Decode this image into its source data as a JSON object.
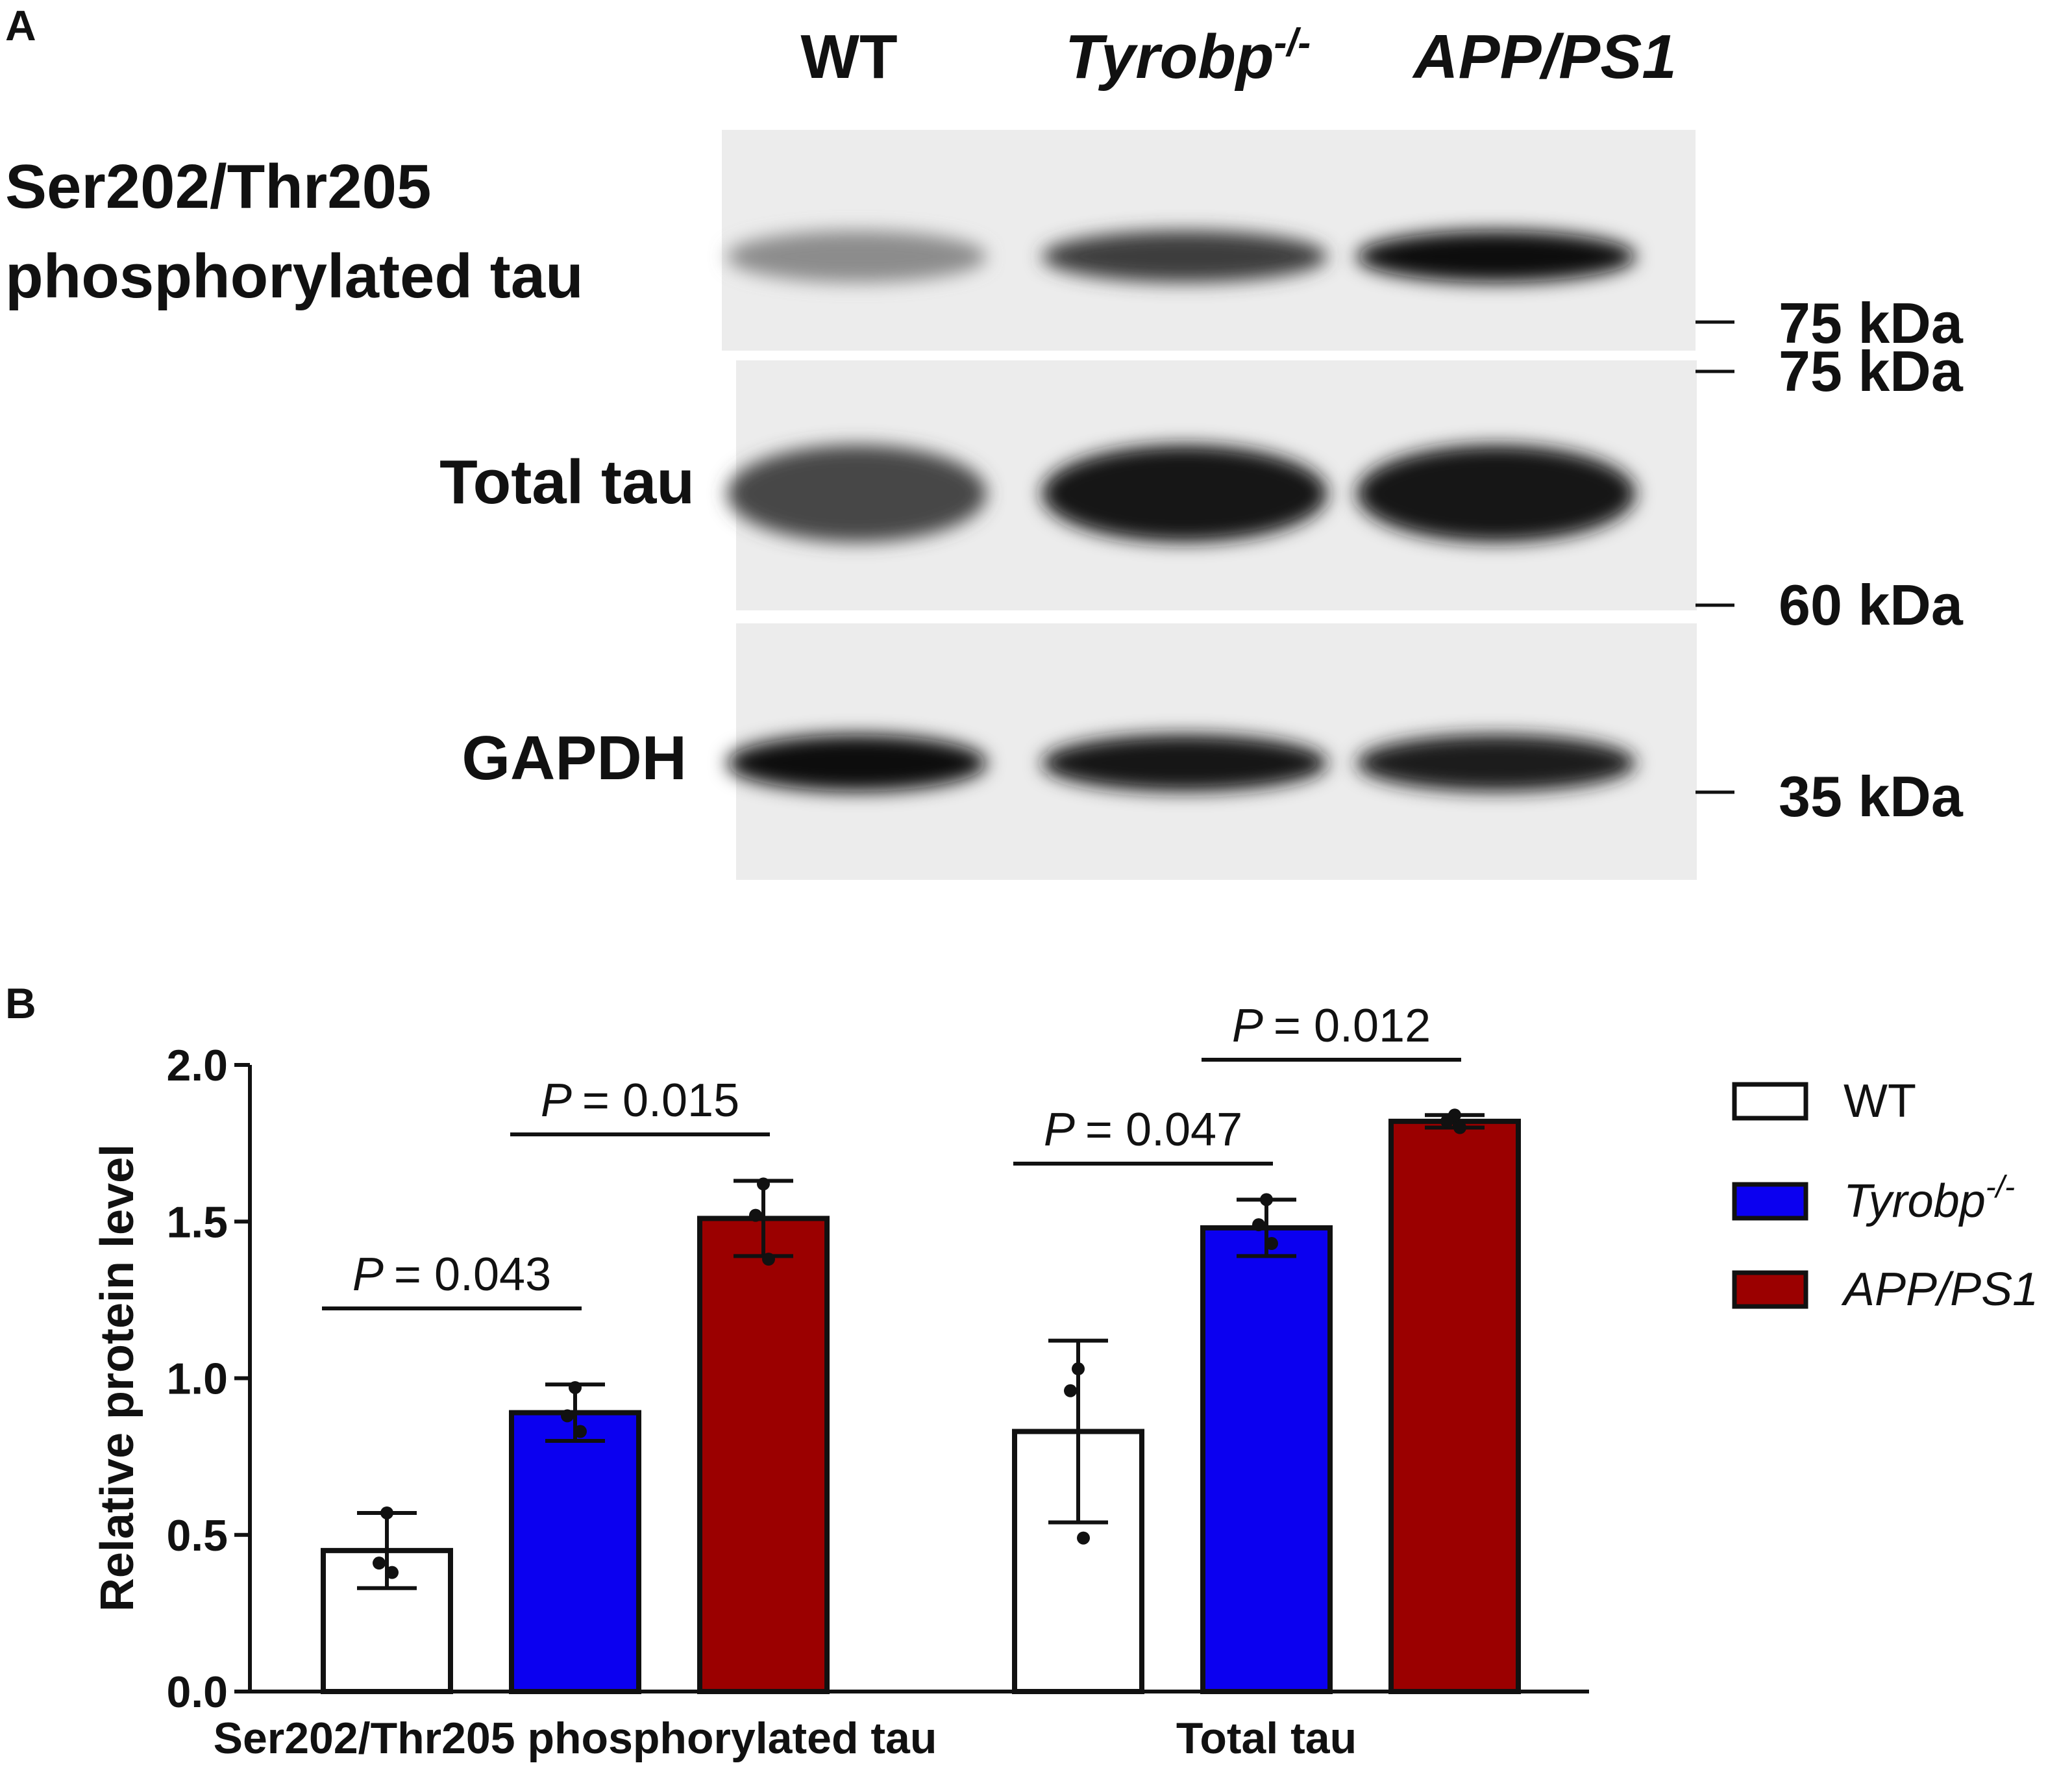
{
  "panel_a": {
    "label": "A",
    "lanes": [
      {
        "base": "WT",
        "sup": "",
        "italic": false
      },
      {
        "base": "Tyrobp",
        "sup": "-/-",
        "italic": true
      },
      {
        "base": "APP/PS1",
        "sup": "",
        "italic": true
      }
    ],
    "blots": [
      {
        "label_lines": [
          "Ser202/Thr205",
          "phosphorylated tau"
        ],
        "markers": [
          "75 kDa"
        ],
        "band_intensity": [
          0.35,
          0.75,
          1.0
        ]
      },
      {
        "label_lines": [
          "Total tau"
        ],
        "markers": [
          "75 kDa",
          "60 kDa"
        ],
        "band_intensity": [
          0.7,
          0.95,
          0.95
        ]
      },
      {
        "label_lines": [
          "GAPDH"
        ],
        "markers": [
          "35 kDa"
        ],
        "band_intensity": [
          1.0,
          0.95,
          0.9
        ]
      }
    ]
  },
  "panel_b": {
    "label": "B"
  },
  "chart_data": {
    "type": "bar",
    "ylabel": "Relative protein level",
    "ylim": [
      0,
      2.0
    ],
    "yticks": [
      "0.0",
      "0.5",
      "1.0",
      "1.5",
      "2.0"
    ],
    "categories": [
      "Ser202/Thr205 phosphorylated tau",
      "Total tau"
    ],
    "series": [
      {
        "name": "WT",
        "name_sup": "",
        "italic": false,
        "color": "#ffffff",
        "values": [
          0.45,
          0.83
        ],
        "error": [
          0.12,
          0.29
        ],
        "points": [
          [
            0.57,
            0.41,
            0.38
          ],
          [
            1.03,
            0.96,
            0.49
          ]
        ]
      },
      {
        "name": "Tyrobp",
        "name_sup": "-/-",
        "italic": true,
        "color": "#0b00f0",
        "values": [
          0.89,
          1.48
        ],
        "error": [
          0.09,
          0.09
        ],
        "points": [
          [
            0.97,
            0.88,
            0.83
          ],
          [
            1.57,
            1.49,
            1.43
          ]
        ]
      },
      {
        "name": "APP/PS1",
        "name_sup": "",
        "italic": true,
        "color": "#9b0000",
        "values": [
          1.51,
          1.82
        ],
        "error": [
          0.12,
          0.02
        ],
        "points": [
          [
            1.62,
            1.52,
            1.38
          ],
          [
            1.84,
            1.82,
            1.8
          ]
        ]
      }
    ],
    "comparisons": [
      {
        "category": 0,
        "from": 0,
        "to": 1,
        "label": "= 0.043",
        "p": "P"
      },
      {
        "category": 0,
        "from": 1,
        "to": 2,
        "label": "= 0.015",
        "p": "P"
      },
      {
        "category": 1,
        "from": 0,
        "to": 1,
        "label": "= 0.047",
        "p": "P"
      },
      {
        "category": 1,
        "from": 1,
        "to": 2,
        "label": "= 0.012",
        "p": "P"
      }
    ],
    "legend_position": "right"
  }
}
